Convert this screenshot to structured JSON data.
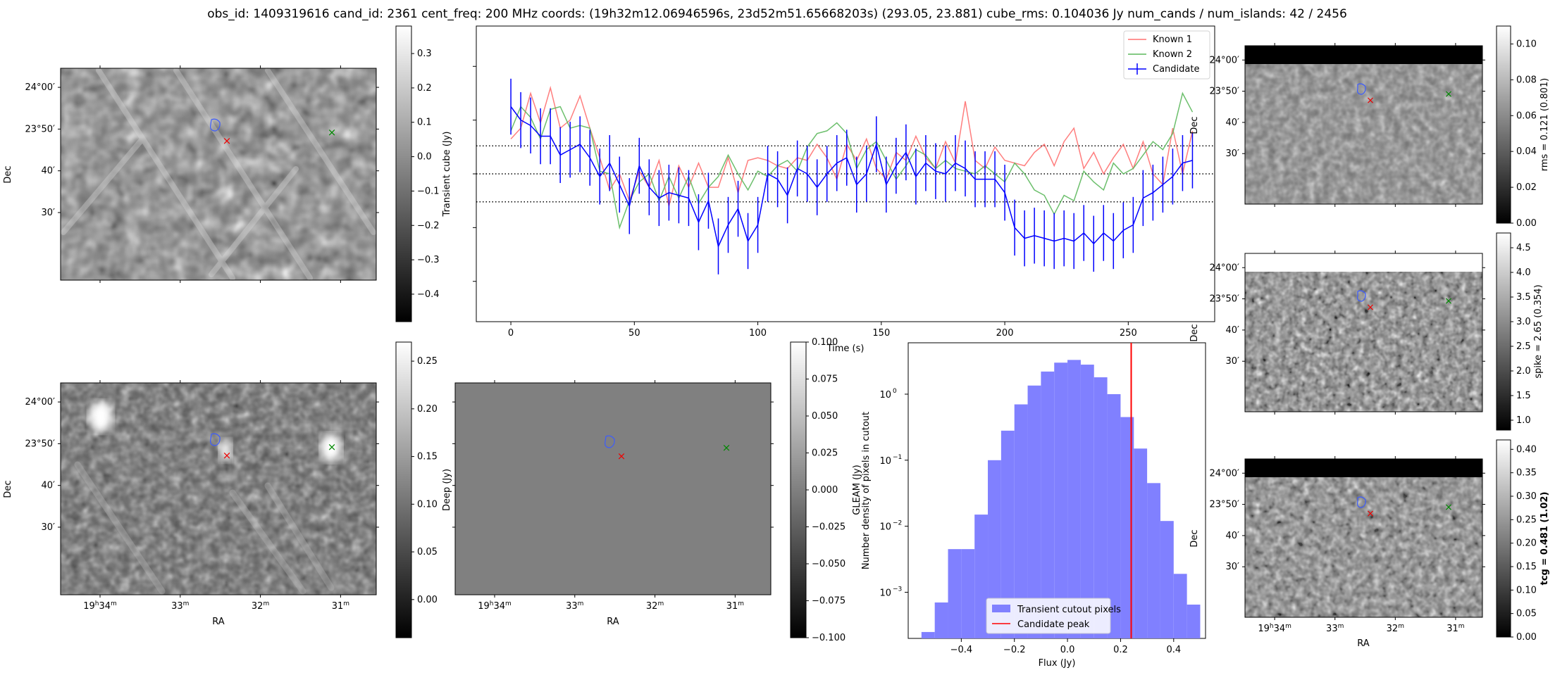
{
  "title": "obs_id: 1409319616 cand_id: 2361 cent_freq: 200 MHz coords: (19h32m12.06946596s, 23d52m51.65668203s) (293.05, 23.881) cube_rms: 0.104036 Jy num_cands / num_islands: 42 / 2456",
  "sky_axes": {
    "ra_label": "RA",
    "dec_label": "Dec",
    "ra_ticks": [
      {
        "h": "19",
        "m": "34",
        "v": 34
      },
      {
        "h": "",
        "m": "33",
        "v": 33
      },
      {
        "h": "",
        "m": "32",
        "v": 32
      },
      {
        "h": "",
        "m": "31",
        "v": 31
      }
    ],
    "dec_ticks": [
      {
        "label": "24°00′",
        "v": 60
      },
      {
        "label": "23°50′",
        "v": 50
      },
      {
        "label": "40′",
        "v": 40
      },
      {
        "label": "30′",
        "v": 30
      }
    ]
  },
  "panels": {
    "transient": {
      "cbar_label": "Transient cube (Jy)",
      "vmin": -0.48,
      "vmax": 0.38,
      "ticks": [
        0.3,
        0.2,
        0.1,
        0.0,
        -0.1,
        -0.2,
        -0.3,
        -0.4
      ],
      "tick_labels": [
        "0.3",
        "0.2",
        "0.1",
        "0.0",
        "−0.1",
        "−0.2",
        "−0.3",
        "−0.4"
      ]
    },
    "deep": {
      "cbar_label": "Deep (Jy)",
      "vmin": -0.04,
      "vmax": 0.27,
      "ticks": [
        0.25,
        0.2,
        0.15,
        0.1,
        0.05,
        0.0
      ],
      "tick_labels": [
        "0.25",
        "0.20",
        "0.15",
        "0.10",
        "0.05",
        "0.00"
      ]
    },
    "gleam": {
      "cbar_label": "GLEAM (Jy)",
      "vmin": -0.1,
      "vmax": 0.1,
      "ticks": [
        0.1,
        0.075,
        0.05,
        0.025,
        0.0,
        -0.025,
        -0.05,
        -0.075,
        -0.1
      ],
      "tick_labels": [
        "0.100",
        "0.075",
        "0.050",
        "0.025",
        "0.000",
        "−0.025",
        "−0.050",
        "−0.075",
        "−0.100"
      ]
    },
    "rms": {
      "cbar_label": "rms = 0.121 (0.801)",
      "vmin": 0.0,
      "vmax": 0.11,
      "ticks": [
        0.1,
        0.08,
        0.06,
        0.04,
        0.02,
        0.0
      ],
      "tick_labels": [
        "0.10",
        "0.08",
        "0.06",
        "0.04",
        "0.02",
        "0.00"
      ]
    },
    "spike": {
      "cbar_label": "spike = 2.65 (0.354)",
      "vmin": 0.8,
      "vmax": 4.8,
      "ticks": [
        4.5,
        4.0,
        3.5,
        3.0,
        2.5,
        2.0,
        1.5,
        1.0
      ],
      "tick_labels": [
        "4.5",
        "4.0",
        "3.5",
        "3.0",
        "2.5",
        "2.0",
        "1.5",
        "1.0"
      ]
    },
    "tcg": {
      "cbar_label": "tcg = 0.481 (1.02)",
      "vmin": 0.0,
      "vmax": 0.42,
      "ticks": [
        0.4,
        0.35,
        0.3,
        0.25,
        0.2,
        0.15,
        0.1,
        0.05,
        0.0
      ],
      "tick_labels": [
        "0.40",
        "0.35",
        "0.30",
        "0.25",
        "0.20",
        "0.15",
        "0.10",
        "0.05",
        "0.00"
      ]
    }
  },
  "chart_data": [
    {
      "type": "line",
      "title": "",
      "xlabel": "Time (s)",
      "ylabel": "",
      "xlim": [
        -14,
        285
      ],
      "ylim": [
        -0.55,
        0.55
      ],
      "xticks": [
        0,
        50,
        100,
        150,
        200,
        250
      ],
      "hlines": [
        0.104036,
        0.0,
        -0.104036
      ],
      "x": [
        0,
        4,
        8,
        12,
        16,
        20,
        24,
        28,
        32,
        36,
        40,
        44,
        48,
        52,
        56,
        60,
        64,
        68,
        72,
        76,
        80,
        84,
        88,
        92,
        96,
        100,
        104,
        108,
        112,
        116,
        120,
        124,
        128,
        132,
        136,
        140,
        144,
        148,
        152,
        156,
        160,
        164,
        168,
        172,
        176,
        180,
        184,
        188,
        192,
        196,
        200,
        204,
        208,
        212,
        216,
        220,
        224,
        228,
        232,
        236,
        240,
        244,
        248,
        252,
        256,
        260,
        264,
        268,
        272,
        276
      ],
      "series": [
        {
          "name": "Known 1",
          "color": "#ff7070",
          "values": [
            0.13,
            0.17,
            0.3,
            0.19,
            0.32,
            0.17,
            0.2,
            0.29,
            0.17,
            0.06,
            -0.06,
            0.0,
            -0.1,
            0.01,
            -0.05,
            0.05,
            -0.12,
            0.03,
            -0.05,
            0.04,
            -0.05,
            -0.05,
            0.06,
            -0.07,
            0.05,
            0.06,
            0.05,
            0.03,
            0.02,
            0.06,
            0.05,
            0.11,
            0.06,
            -0.02,
            0.11,
            0.05,
            0.13,
            0.02,
            -0.02,
            0.08,
            0.05,
            0.14,
            0.06,
            0.02,
            0.12,
            0.04,
            0.27,
            0.05,
            0.02,
            0.1,
            0.05,
            0.04,
            0.03,
            0.08,
            0.11,
            0.03,
            0.12,
            0.17,
            0.02,
            0.08,
            0.0,
            0.06,
            0.11,
            0.02,
            0.12,
            0.0,
            -0.04,
            0.17,
            0.0,
            0.16
          ]
        },
        {
          "name": "Known 2",
          "color": "#5cb85c",
          "values": [
            0.16,
            0.25,
            0.21,
            0.13,
            0.24,
            0.25,
            0.17,
            0.18,
            0.17,
            0.01,
            0.0,
            -0.2,
            -0.1,
            -0.03,
            0.0,
            -0.1,
            -0.01,
            -0.09,
            -0.01,
            -0.11,
            -0.05,
            -0.01,
            0.07,
            0.0,
            -0.06,
            0.01,
            -0.01,
            0.03,
            0.05,
            0.01,
            0.1,
            0.15,
            0.16,
            0.19,
            0.15,
            0.02,
            0.09,
            0.12,
            0.05,
            -0.02,
            0.03,
            0.09,
            0.07,
            0.02,
            0.05,
            0.02,
            0.01,
            0.0,
            0.03,
            0.0,
            -0.03,
            0.04,
            0.0,
            -0.06,
            -0.08,
            -0.15,
            -0.08,
            -0.1,
            0.01,
            -0.03,
            -0.06,
            0.04,
            0.0,
            0.02,
            0.07,
            0.12,
            0.09,
            0.15,
            0.3,
            0.23
          ]
        },
        {
          "name": "Candidate",
          "color": "#0000ff",
          "yerr": 0.104036,
          "values": [
            0.25,
            0.2,
            0.18,
            0.14,
            0.14,
            0.07,
            0.09,
            0.11,
            0.06,
            -0.01,
            0.04,
            -0.04,
            -0.12,
            0.03,
            -0.05,
            -0.09,
            -0.07,
            -0.08,
            -0.09,
            -0.18,
            -0.1,
            -0.27,
            -0.19,
            -0.13,
            -0.25,
            -0.19,
            0.0,
            -0.02,
            -0.08,
            0.02,
            0.0,
            -0.05,
            0.0,
            0.04,
            0.06,
            -0.04,
            0.0,
            0.11,
            -0.04,
            0.03,
            0.08,
            -0.01,
            0.04,
            0.01,
            0.0,
            0.04,
            0.02,
            -0.02,
            -0.02,
            -0.02,
            -0.07,
            -0.2,
            -0.24,
            -0.23,
            -0.24,
            -0.25,
            -0.24,
            -0.25,
            -0.22,
            -0.26,
            -0.22,
            -0.25,
            -0.21,
            -0.19,
            -0.09,
            -0.07,
            -0.04,
            -0.01,
            0.04,
            0.05
          ]
        }
      ],
      "legend": {
        "position": "top-right",
        "entries": [
          "Known 1",
          "Known 2",
          "Candidate"
        ]
      }
    },
    {
      "type": "bar",
      "title": "",
      "xlabel": "Flux (Jy)",
      "ylabel": "Number density of pixels in cutout",
      "yscale": "log",
      "xlim": [
        -0.6,
        0.52
      ],
      "ylim": [
        0.0002,
        6.0
      ],
      "xticks": [
        -0.4,
        -0.2,
        0.0,
        0.2,
        0.4
      ],
      "xtick_labels": [
        "−0.4",
        "−0.2",
        "0.0",
        "0.2",
        "0.4"
      ],
      "yticks": [
        {
          "v": 1,
          "base": "10",
          "exp": "0"
        },
        {
          "v": 0.1,
          "base": "10",
          "exp": "−1"
        },
        {
          "v": 0.01,
          "base": "10",
          "exp": "−2"
        },
        {
          "v": 0.001,
          "base": "10",
          "exp": "−3"
        }
      ],
      "bin_edges": [
        -0.55,
        -0.5,
        -0.45,
        -0.4,
        -0.35,
        -0.3,
        -0.25,
        -0.2,
        -0.15,
        -0.1,
        -0.05,
        0.0,
        0.05,
        0.1,
        0.15,
        0.2,
        0.25,
        0.3,
        0.35,
        0.4,
        0.45,
        0.5
      ],
      "values": [
        0.00025,
        0.0007,
        0.0045,
        0.0045,
        0.015,
        0.1,
        0.28,
        0.7,
        1.35,
        2.2,
        3.0,
        3.3,
        2.8,
        1.8,
        1.0,
        0.45,
        0.15,
        0.045,
        0.012,
        0.0019,
        0.00065
      ],
      "bar_color": "#8080ff",
      "vline": {
        "x": 0.24,
        "color": "#ff0000"
      },
      "legend": {
        "position": "bottom-center",
        "entries": [
          "Transient cutout pixels",
          "Candidate peak"
        ]
      }
    }
  ],
  "hist_legend": {
    "bars": "Transient cutout pixels",
    "peak": "Candidate peak"
  },
  "lc_legend": {
    "k1": "Known 1",
    "k2": "Known 2",
    "cand": "Candidate"
  }
}
